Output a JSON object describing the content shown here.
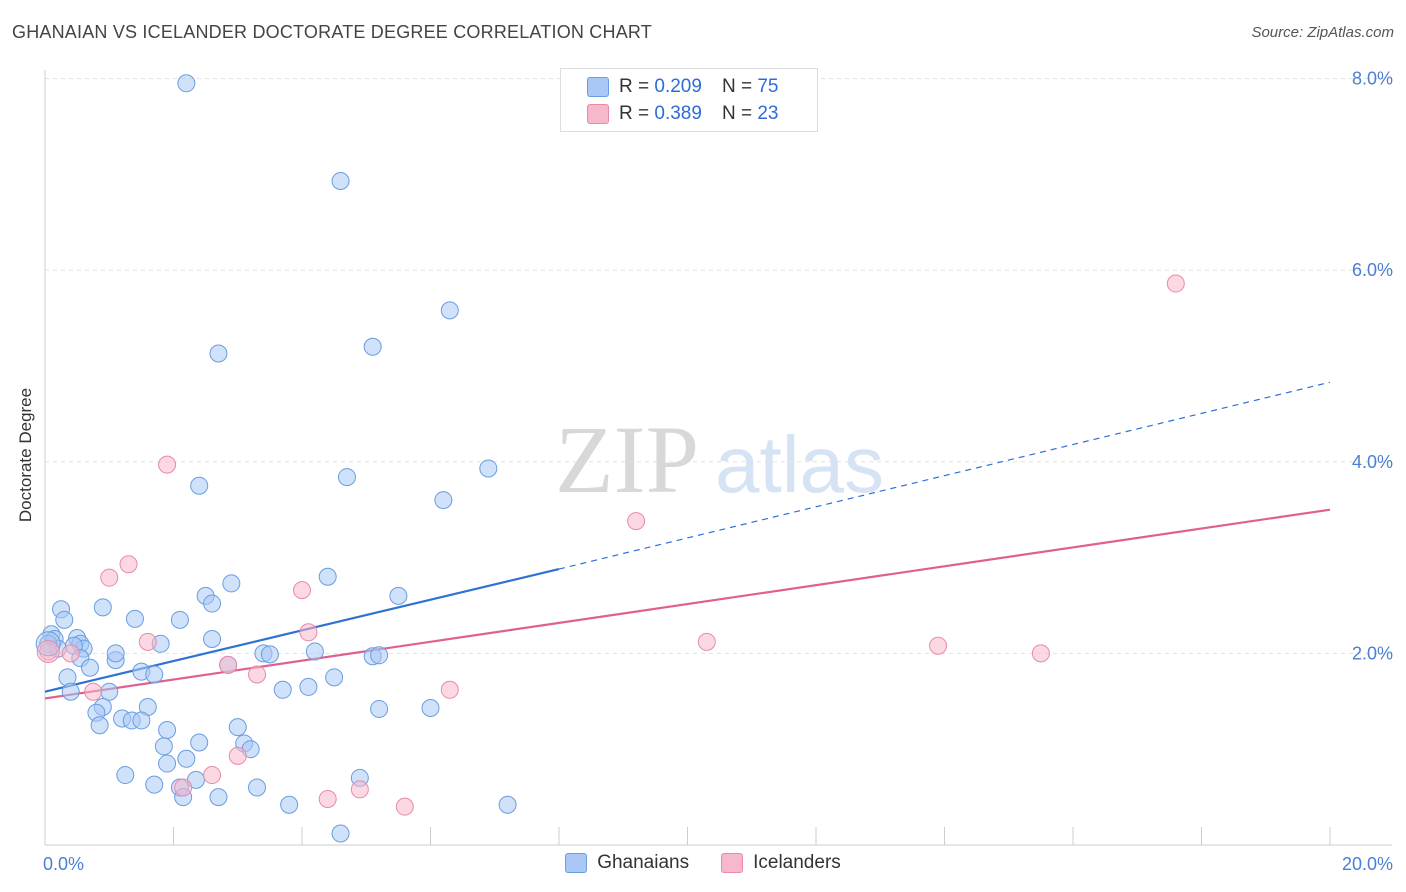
{
  "title": "GHANAIAN VS ICELANDER DOCTORATE DEGREE CORRELATION CHART",
  "source": "Source: ZipAtlas.com",
  "watermark": {
    "zip": "ZIP",
    "atlas": "atlas"
  },
  "legend": {
    "rows": [
      {
        "r_label": "R = ",
        "r_value": "0.209",
        "n_label": "N = ",
        "n_value": "75",
        "color": "#a9c8f5"
      },
      {
        "r_label": "R = ",
        "r_value": "0.389",
        "n_label": "N = ",
        "n_value": "23",
        "color": "#f7b8cb"
      }
    ]
  },
  "chart_data": {
    "type": "scatter",
    "title": "GHANAIAN VS ICELANDER DOCTORATE DEGREE CORRELATION CHART",
    "xlabel": "",
    "ylabel": "Doctorate Degree",
    "xlim": [
      0,
      20
    ],
    "ylim": [
      0,
      8.2
    ],
    "x_tick_labels": [
      "0.0%",
      "20.0%"
    ],
    "y_ticks": [
      2,
      4,
      6,
      8
    ],
    "y_tick_labels": [
      "2.0%",
      "4.0%",
      "6.0%",
      "8.0%"
    ],
    "grid": true,
    "series": [
      {
        "name": "Ghanaians",
        "color": "#a9c8f5",
        "stroke": "#6a9de0",
        "trend": {
          "x0": 0,
          "y0": 1.6,
          "x1": 8.0,
          "y1": 2.88,
          "dash_to_x": 20,
          "dash_to_y": 4.83,
          "color": "#2e72d2"
        },
        "points": [
          [
            2.2,
            7.95
          ],
          [
            4.6,
            6.93
          ],
          [
            6.3,
            5.58
          ],
          [
            2.7,
            5.13
          ],
          [
            5.1,
            5.2
          ],
          [
            2.4,
            3.75
          ],
          [
            4.7,
            3.84
          ],
          [
            6.9,
            3.93
          ],
          [
            6.2,
            3.6
          ],
          [
            4.4,
            2.8
          ],
          [
            2.9,
            2.73
          ],
          [
            2.5,
            2.6
          ],
          [
            2.6,
            2.52
          ],
          [
            5.5,
            2.6
          ],
          [
            0.9,
            2.48
          ],
          [
            0.25,
            2.46
          ],
          [
            0.3,
            2.35
          ],
          [
            1.4,
            2.36
          ],
          [
            2.1,
            2.35
          ],
          [
            0.1,
            2.2
          ],
          [
            0.15,
            2.15
          ],
          [
            0.5,
            2.16
          ],
          [
            0.55,
            2.1
          ],
          [
            2.6,
            2.15
          ],
          [
            1.8,
            2.1
          ],
          [
            0.2,
            2.05
          ],
          [
            0.6,
            2.05
          ],
          [
            0.45,
            2.08
          ],
          [
            3.4,
            2.0
          ],
          [
            3.5,
            1.99
          ],
          [
            4.2,
            2.02
          ],
          [
            5.1,
            1.97
          ],
          [
            5.2,
            1.98
          ],
          [
            1.1,
            1.93
          ],
          [
            1.1,
            2.0
          ],
          [
            0.55,
            1.95
          ],
          [
            0.7,
            1.85
          ],
          [
            2.85,
            1.88
          ],
          [
            1.5,
            1.81
          ],
          [
            1.7,
            1.78
          ],
          [
            4.5,
            1.75
          ],
          [
            0.35,
            1.75
          ],
          [
            3.7,
            1.62
          ],
          [
            4.1,
            1.65
          ],
          [
            1.0,
            1.6
          ],
          [
            0.4,
            1.6
          ],
          [
            1.6,
            1.44
          ],
          [
            0.9,
            1.44
          ],
          [
            5.2,
            1.42
          ],
          [
            6.0,
            1.43
          ],
          [
            0.8,
            1.38
          ],
          [
            1.2,
            1.32
          ],
          [
            1.35,
            1.3
          ],
          [
            1.5,
            1.3
          ],
          [
            0.85,
            1.25
          ],
          [
            3.0,
            1.23
          ],
          [
            1.9,
            1.2
          ],
          [
            2.4,
            1.07
          ],
          [
            1.85,
            1.03
          ],
          [
            3.1,
            1.06
          ],
          [
            3.2,
            1.0
          ],
          [
            2.2,
            0.9
          ],
          [
            1.9,
            0.85
          ],
          [
            1.25,
            0.73
          ],
          [
            2.35,
            0.68
          ],
          [
            4.9,
            0.7
          ],
          [
            1.7,
            0.63
          ],
          [
            2.1,
            0.6
          ],
          [
            3.3,
            0.6
          ],
          [
            2.15,
            0.5
          ],
          [
            2.7,
            0.5
          ],
          [
            3.8,
            0.42
          ],
          [
            7.2,
            0.42
          ],
          [
            4.6,
            0.12
          ],
          [
            0.05,
            2.1
          ]
        ]
      },
      {
        "name": "Icelanders",
        "color": "#f7b8cb",
        "stroke": "#e88aa8",
        "trend": {
          "x0": 0,
          "y0": 1.53,
          "x1": 20,
          "y1": 3.5,
          "color": "#e0608d"
        },
        "points": [
          [
            17.6,
            5.86
          ],
          [
            1.9,
            3.97
          ],
          [
            9.2,
            3.38
          ],
          [
            1.3,
            2.93
          ],
          [
            1.0,
            2.79
          ],
          [
            4.0,
            2.66
          ],
          [
            4.1,
            2.22
          ],
          [
            1.6,
            2.12
          ],
          [
            10.3,
            2.12
          ],
          [
            13.9,
            2.08
          ],
          [
            15.5,
            2.0
          ],
          [
            0.4,
            2.0
          ],
          [
            0.05,
            2.02
          ],
          [
            2.85,
            1.88
          ],
          [
            3.3,
            1.78
          ],
          [
            6.3,
            1.62
          ],
          [
            0.75,
            1.6
          ],
          [
            3.0,
            0.93
          ],
          [
            2.6,
            0.73
          ],
          [
            2.15,
            0.6
          ],
          [
            4.9,
            0.58
          ],
          [
            4.4,
            0.48
          ],
          [
            5.6,
            0.4
          ]
        ]
      }
    ]
  },
  "bottom_legend": [
    {
      "label": "Ghanaians",
      "color": "#a9c8f5"
    },
    {
      "label": "Icelanders",
      "color": "#f7b8cb"
    }
  ]
}
